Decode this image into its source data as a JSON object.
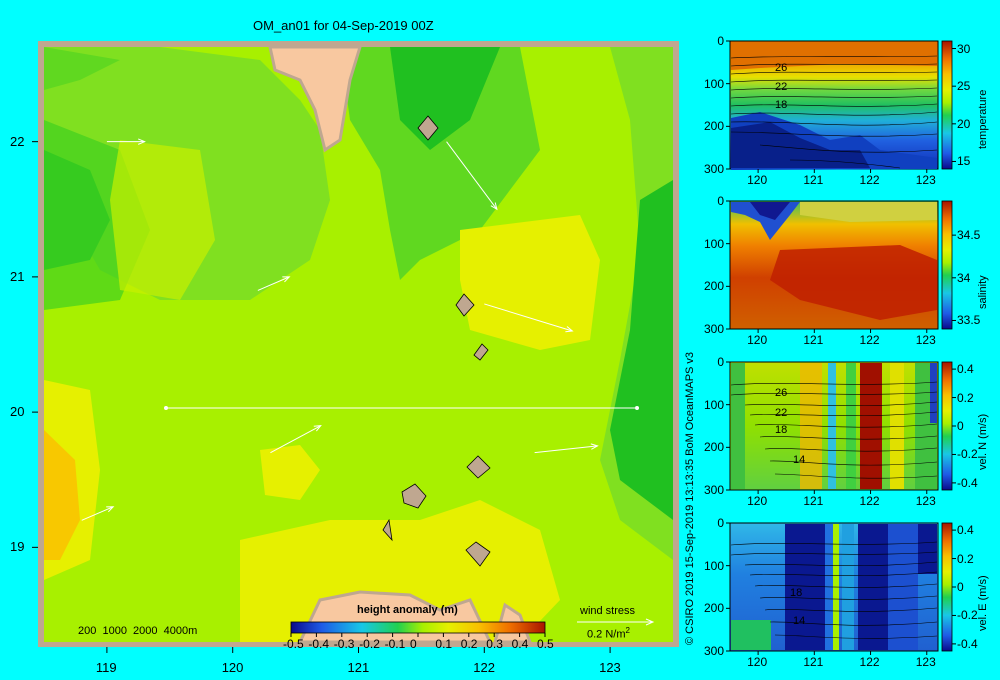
{
  "map": {
    "title": "OM_an01 for 04-Sep-2019 00Z",
    "lon_ticks": [
      "119",
      "120",
      "121",
      "122",
      "123"
    ],
    "lat_ticks": [
      "22",
      "21",
      "20",
      "19"
    ],
    "depth_legend": "200  1000  2000  4000m",
    "colorbar_title": "height anomaly  (m)",
    "colorbar_ticks": [
      "-0.5",
      "-0.4",
      "-0.3",
      "-0.2",
      "-0.1",
      "0",
      "0.1",
      "0.2",
      "0.3",
      "0.4",
      "0.5"
    ],
    "wind_title": "wind stress",
    "wind_scale": "0.2 N/m",
    "wind_scale_sup": "2",
    "land_color": "#F8C8A0",
    "shelf_color": "#BFA790"
  },
  "panels": [
    {
      "name": "temperature",
      "cbar_label": "temperature",
      "cbar_ticks": [
        "30",
        "25",
        "20",
        "15"
      ],
      "y_ticks": [
        "0",
        "100",
        "200",
        "300"
      ],
      "x_ticks": [
        "120",
        "121",
        "122",
        "123"
      ],
      "contour_labels": [
        "26",
        "22",
        "18"
      ]
    },
    {
      "name": "salinity",
      "cbar_label": "salinity",
      "cbar_ticks": [
        "34.5",
        "34",
        "33.5"
      ],
      "y_ticks": [
        "0",
        "100",
        "200",
        "300"
      ],
      "x_ticks": [
        "120",
        "121",
        "122",
        "123"
      ],
      "contour_labels": []
    },
    {
      "name": "vel-n",
      "cbar_label": "vel. N  (m/s)",
      "cbar_ticks": [
        "0.4",
        "0.2",
        "0",
        "-0.2",
        "-0.4"
      ],
      "y_ticks": [
        "0",
        "100",
        "200",
        "300"
      ],
      "x_ticks": [
        "120",
        "121",
        "122",
        "123"
      ],
      "contour_labels": [
        "26",
        "22",
        "18",
        "14"
      ]
    },
    {
      "name": "vel-e",
      "cbar_label": "vel. E  (m/s)",
      "cbar_ticks": [
        "0.4",
        "0.2",
        "0",
        "-0.2",
        "-0.4"
      ],
      "y_ticks": [
        "0",
        "100",
        "200",
        "300"
      ],
      "x_ticks": [
        "120",
        "121",
        "122",
        "123"
      ],
      "contour_labels": [
        "18",
        "14"
      ]
    }
  ],
  "credit": "© CSIRO 2019   15-Sep-2019 13:13:35 BoM OceanMAPS v3",
  "chart_data": {
    "type": "heatmap",
    "title": "OM_an01 for 04-Sep-2019 00Z",
    "x_range": [
      118.5,
      123.5
    ],
    "y_range": [
      18.3,
      22.7
    ],
    "colorbar_range": [
      -0.5,
      0.5
    ],
    "section_latitude": 20.0,
    "section_lon_range": [
      119.5,
      123.2
    ],
    "wind_vectors": [
      {
        "lon": 118.8,
        "lat": 19.2,
        "dx": 0.25,
        "dy": 0.1
      },
      {
        "lon": 119.0,
        "lat": 22.0,
        "dx": 0.3,
        "dy": 0.0
      },
      {
        "lon": 120.2,
        "lat": 20.9,
        "dx": 0.25,
        "dy": 0.1
      },
      {
        "lon": 120.3,
        "lat": 19.7,
        "dx": 0.4,
        "dy": 0.2
      },
      {
        "lon": 121.7,
        "lat": 22.0,
        "dx": 0.4,
        "dy": -0.5
      },
      {
        "lon": 122.0,
        "lat": 20.8,
        "dx": 0.7,
        "dy": -0.2
      },
      {
        "lon": 122.4,
        "lat": 19.7,
        "dx": 0.5,
        "dy": 0.05
      }
    ],
    "sections": [
      {
        "variable": "temperature",
        "x_range": [
          119.5,
          123.2
        ],
        "depth_range": [
          0,
          300
        ],
        "color_range": [
          14,
          31
        ],
        "contour_labels": [
          26,
          22,
          18
        ]
      },
      {
        "variable": "salinity",
        "x_range": [
          119.5,
          123.2
        ],
        "depth_range": [
          0,
          300
        ],
        "color_range": [
          33.4,
          34.9
        ]
      },
      {
        "variable": "vel. N",
        "x_range": [
          119.5,
          123.2
        ],
        "depth_range": [
          0,
          300
        ],
        "color_range": [
          -0.4,
          0.4
        ]
      },
      {
        "variable": "vel. E",
        "x_range": [
          119.5,
          123.2
        ],
        "depth_range": [
          0,
          300
        ],
        "color_range": [
          -0.4,
          0.4
        ]
      }
    ]
  }
}
